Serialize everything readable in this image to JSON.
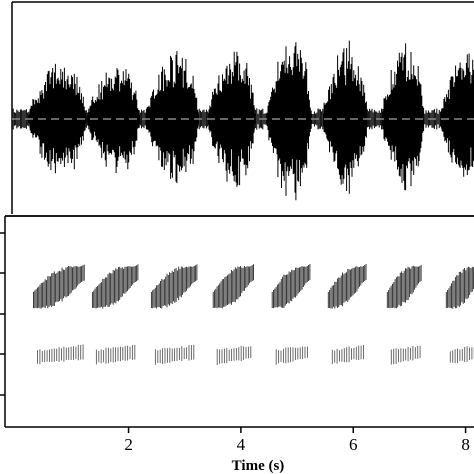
{
  "chart_data": {
    "type": "line",
    "panels": [
      {
        "name": "waveform",
        "kind": "oscillogram",
        "baseline": "dashed"
      },
      {
        "name": "spectrogram",
        "kind": "spectrogram"
      }
    ],
    "xlabel": "Time (s)",
    "x_ticks": [
      {
        "value": 2,
        "label": "2"
      },
      {
        "value": 4,
        "label": "4"
      },
      {
        "value": 6,
        "label": "6"
      },
      {
        "value": 8,
        "label": "8"
      }
    ],
    "xlim": [
      -0.2,
      8.15
    ],
    "pulses": [
      {
        "start": 0.2,
        "end": 1.3,
        "peak": 0.68
      },
      {
        "start": 1.25,
        "end": 2.25,
        "peak": 0.64
      },
      {
        "start": 2.3,
        "end": 3.3,
        "peak": 0.8
      },
      {
        "start": 3.4,
        "end": 4.3,
        "peak": 0.8
      },
      {
        "start": 4.45,
        "end": 5.3,
        "peak": 0.95
      },
      {
        "start": 5.45,
        "end": 6.3,
        "peak": 0.85
      },
      {
        "start": 6.5,
        "end": 7.3,
        "peak": 0.85
      },
      {
        "start": 7.55,
        "end": 8.35,
        "peak": 0.75
      }
    ],
    "grid": false,
    "legend": "none"
  }
}
